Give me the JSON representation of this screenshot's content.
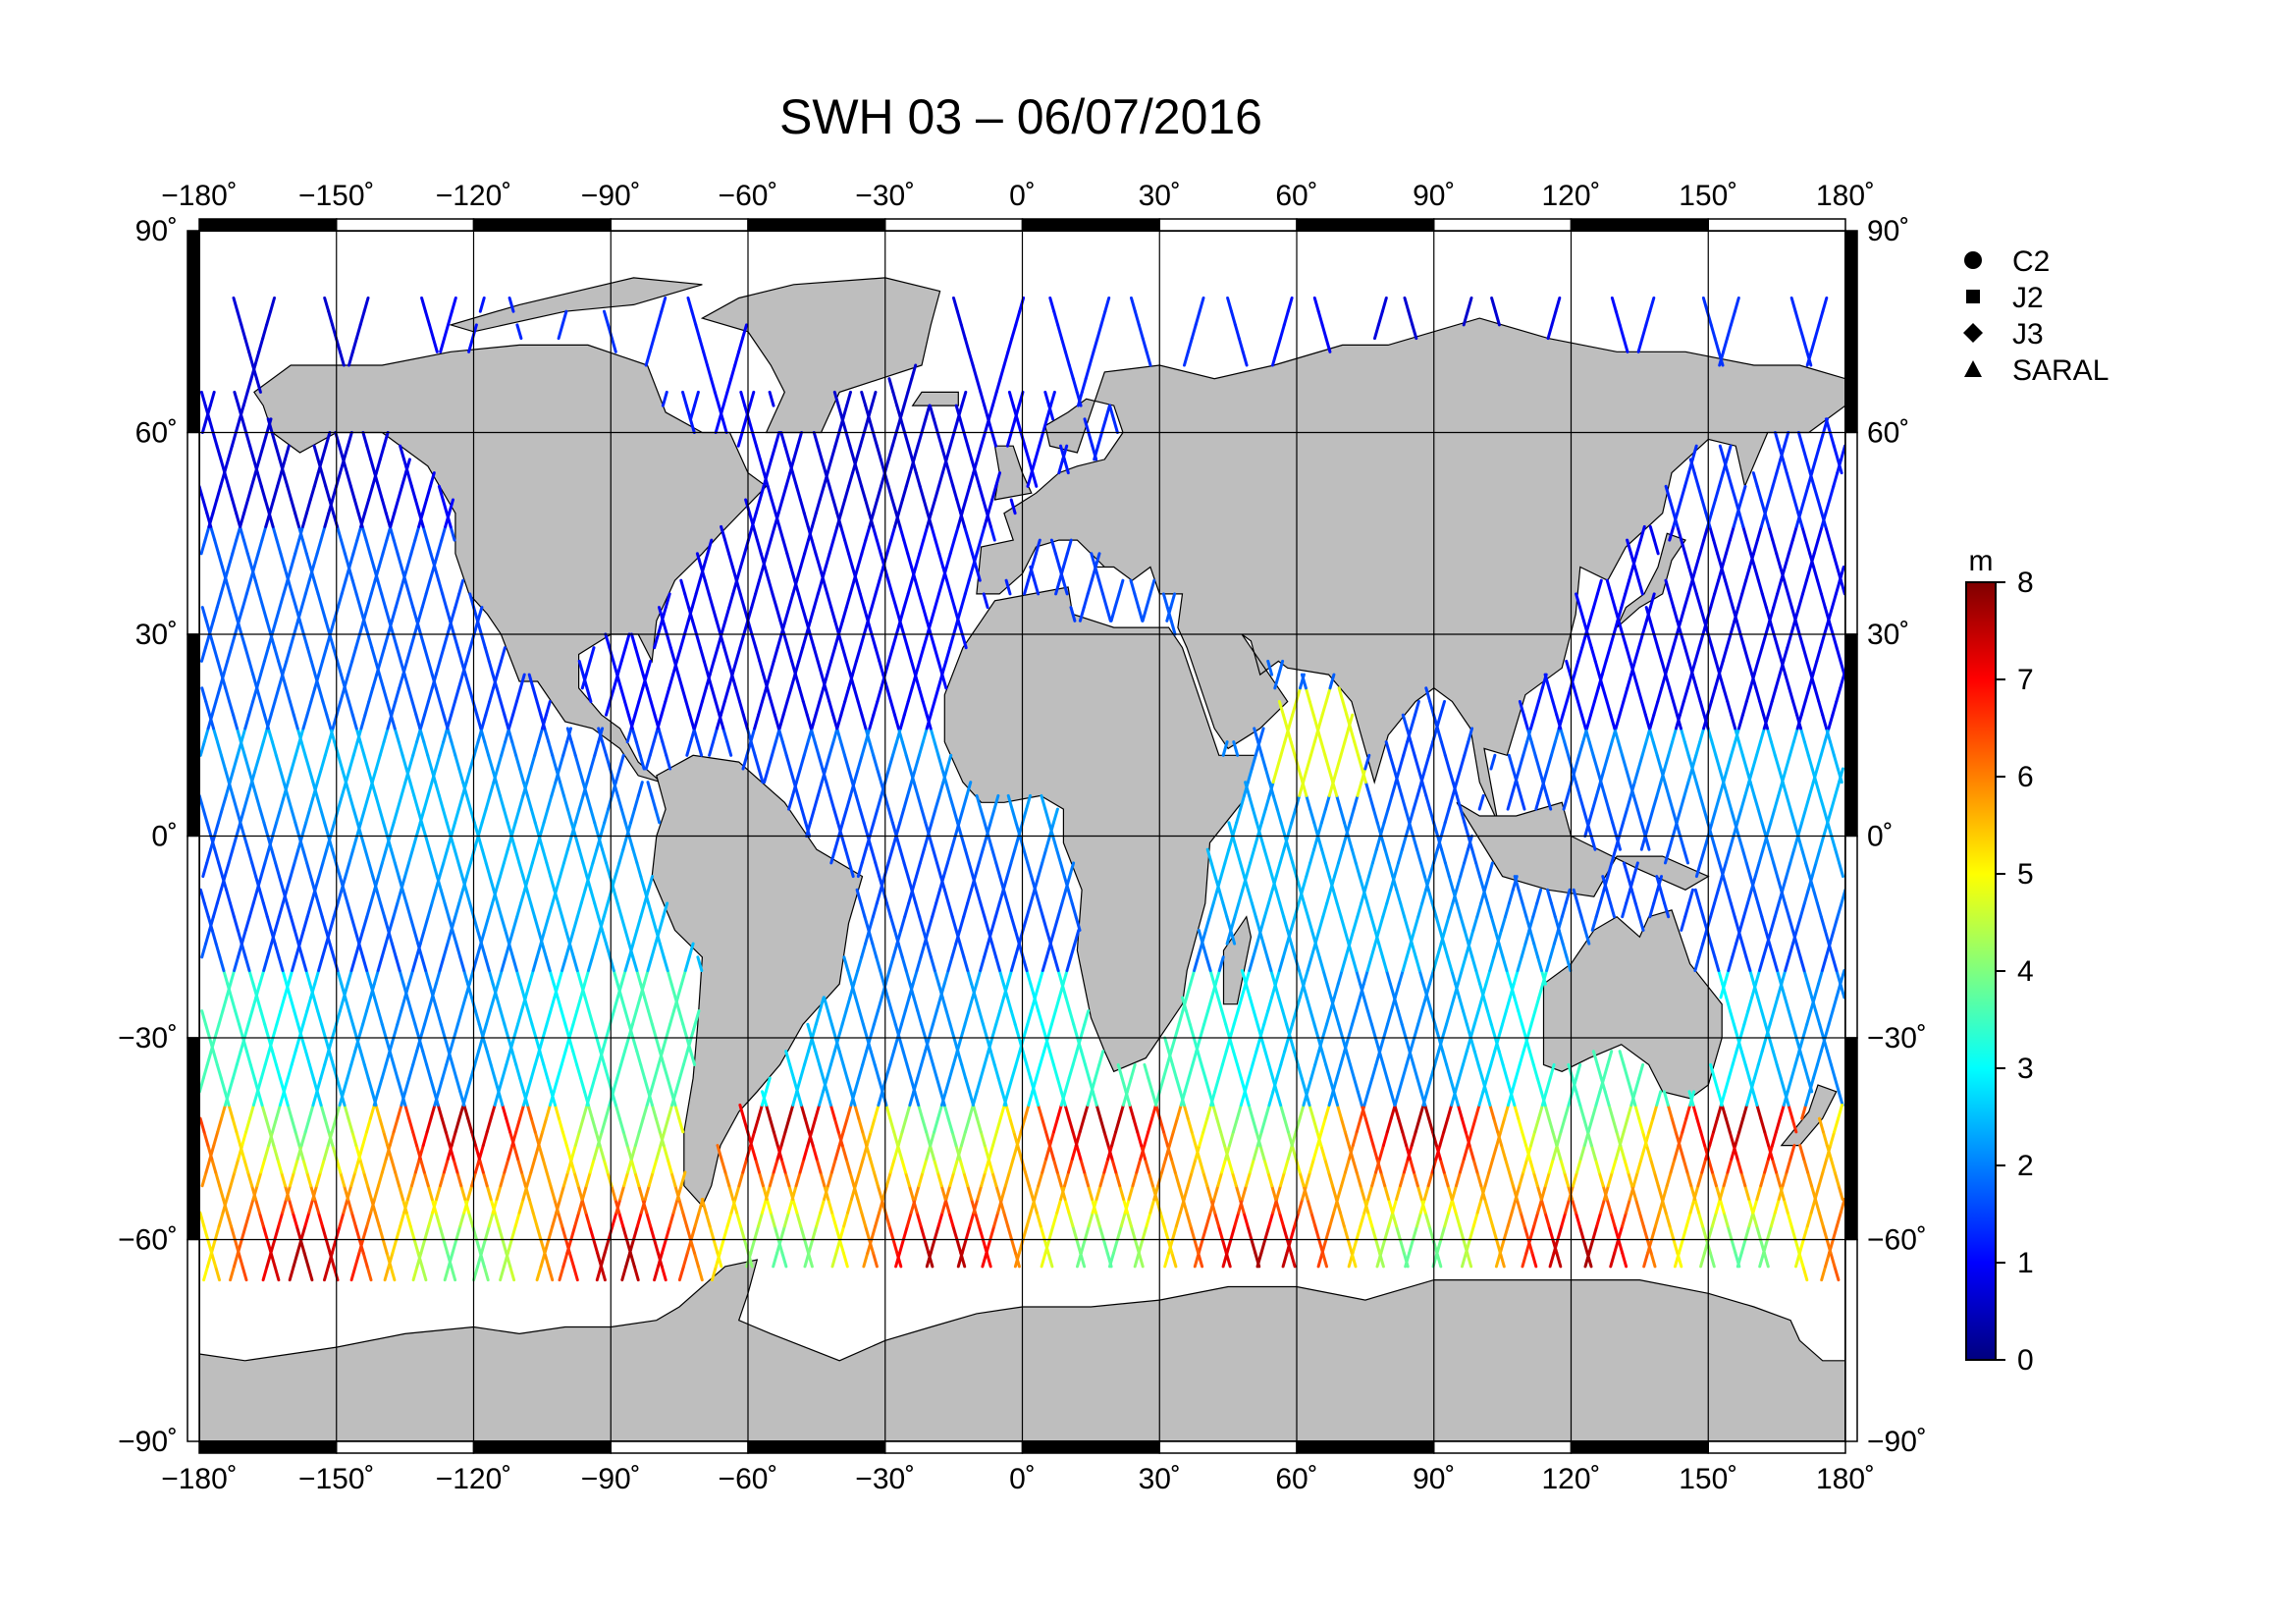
{
  "title": "SWH 03 – 06/07/2016",
  "map": {
    "lon_ticks": [
      "−180˚",
      "−150˚",
      "−120˚",
      "−90˚",
      "−60˚",
      "−30˚",
      "0˚",
      "30˚",
      "60˚",
      "90˚",
      "120˚",
      "150˚",
      "180˚"
    ],
    "lat_ticks": [
      "90˚",
      "60˚",
      "30˚",
      "0˚",
      "−30˚",
      "−60˚",
      "−90˚"
    ],
    "lon_range": [
      -180,
      180
    ],
    "lat_range": [
      -90,
      90
    ],
    "land_color": "#bebebe",
    "ocean_color": "#ffffff",
    "grid": true
  },
  "legend": {
    "items": [
      {
        "label": "C2",
        "symbol": "circle"
      },
      {
        "label": "J2",
        "symbol": "square"
      },
      {
        "label": "J3",
        "symbol": "diamond"
      },
      {
        "label": "SARAL",
        "symbol": "triangle"
      }
    ]
  },
  "colorbar": {
    "unit": "m",
    "ticks": [
      "0",
      "1",
      "2",
      "3",
      "4",
      "5",
      "6",
      "7",
      "8"
    ],
    "range": [
      0,
      8
    ],
    "colors": [
      "#00007f",
      "#0000ff",
      "#007fff",
      "#00ffff",
      "#7fff7f",
      "#ffff00",
      "#ff7f00",
      "#ff0000",
      "#7f0000"
    ]
  }
}
